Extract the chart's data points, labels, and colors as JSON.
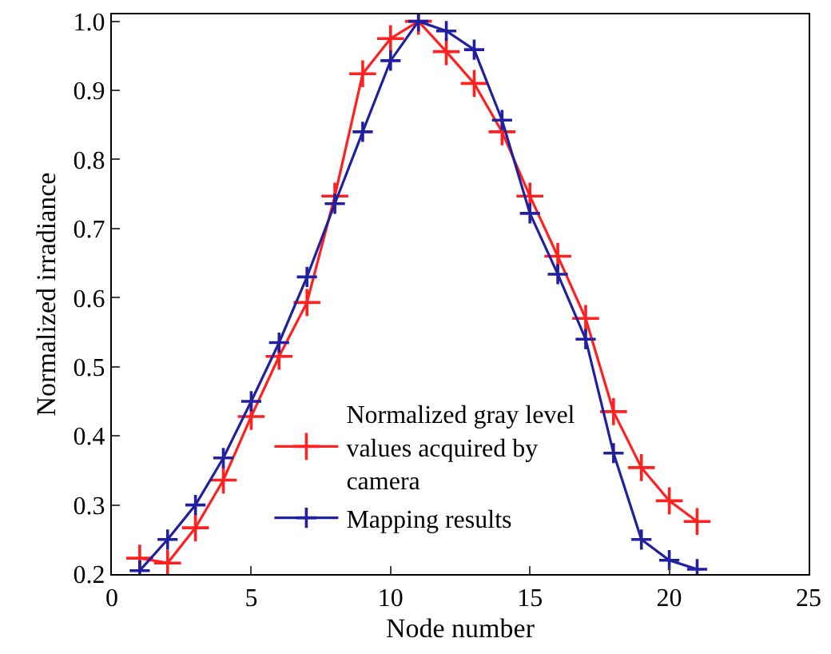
{
  "chart_data": {
    "type": "line",
    "xlabel": "Node number",
    "ylabel": "Normalized irradiance",
    "x": [
      1,
      2,
      3,
      4,
      5,
      6,
      7,
      8,
      9,
      10,
      11,
      12,
      13,
      14,
      15,
      16,
      17,
      18,
      19,
      20,
      21
    ],
    "series": [
      {
        "name": "Normalized gray level values acquired by camera",
        "color": "#ff2020",
        "values": [
          0.223,
          0.216,
          0.267,
          0.336,
          0.428,
          0.515,
          0.593,
          0.747,
          0.924,
          0.975,
          1.0,
          0.956,
          0.91,
          0.84,
          0.747,
          0.66,
          0.57,
          0.435,
          0.354,
          0.306,
          0.276
        ]
      },
      {
        "name": "Mapping results",
        "color": "#2020a0",
        "values": [
          0.205,
          0.25,
          0.3,
          0.368,
          0.45,
          0.535,
          0.63,
          0.736,
          0.84,
          0.943,
          1.0,
          0.986,
          0.959,
          0.857,
          0.722,
          0.634,
          0.54,
          0.375,
          0.25,
          0.22,
          0.207
        ]
      }
    ],
    "xlim": [
      0,
      25
    ],
    "xticks": [
      0,
      5,
      10,
      15,
      20,
      25
    ],
    "ylim": [
      0.2,
      1.01
    ],
    "yticks": [
      {
        "value": 0.2,
        "label": "0.2"
      },
      {
        "value": 0.3,
        "label": "0.3"
      },
      {
        "value": 0.4,
        "label": "0.4"
      },
      {
        "value": 0.5,
        "label": "0.5"
      },
      {
        "value": 0.6,
        "label": "0.6"
      },
      {
        "value": 0.7,
        "label": "0.7"
      },
      {
        "value": 0.8,
        "label": "0.8"
      },
      {
        "value": 0.9,
        "label": "0.9"
      },
      {
        "value": 1.0,
        "label": "1.0"
      }
    ],
    "legend": "bottom",
    "marker": "cross",
    "line_style": "solid"
  }
}
